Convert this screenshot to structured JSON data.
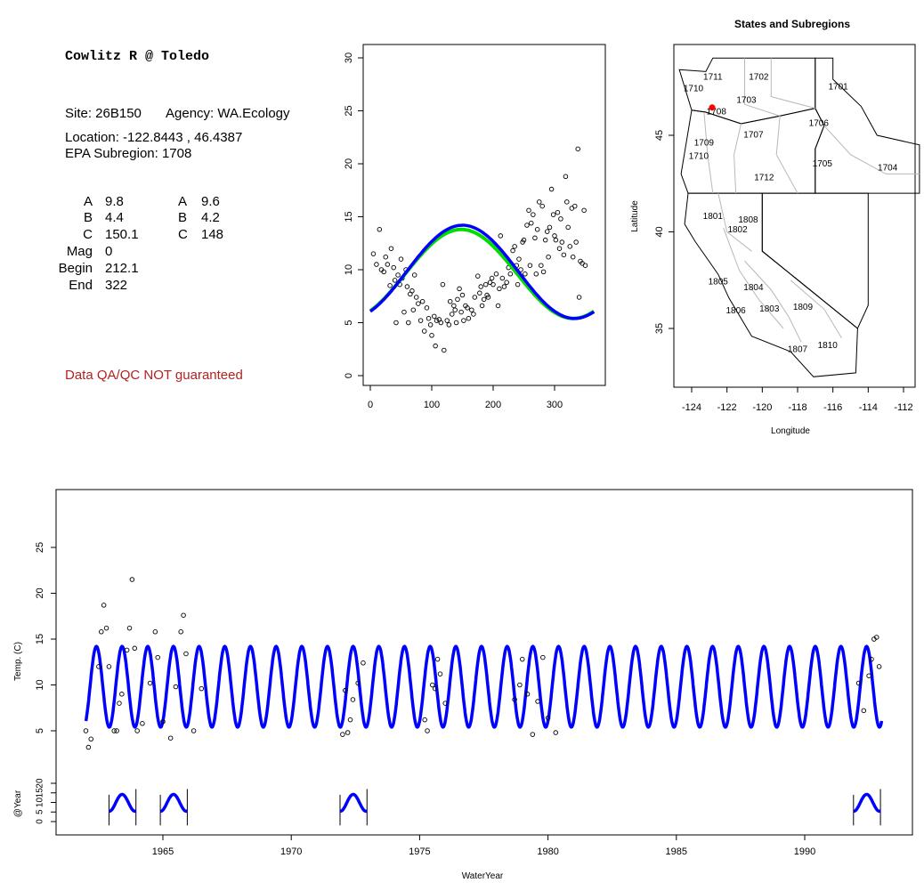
{
  "site": {
    "title": "Cowlitz R @ Toledo",
    "site_line": "Site: 26B150",
    "agency_line": "Agency: WA.Ecology",
    "location_line": "Location: -122.8443 , 46.4387",
    "subregion_line": "EPA Subregion: 1708",
    "params_left": [
      {
        "label": "A",
        "value": "9.8"
      },
      {
        "label": "B",
        "value": "4.4"
      },
      {
        "label": "C",
        "value": "150.1"
      },
      {
        "label": "Mag",
        "value": "0"
      },
      {
        "label": "Begin",
        "value": "212.1"
      },
      {
        "label": "End",
        "value": "322"
      }
    ],
    "params_right": [
      {
        "label": "A",
        "value": "9.6"
      },
      {
        "label": "B",
        "value": "4.2"
      },
      {
        "label": "C",
        "value": "148"
      }
    ],
    "qa_note": "Data QA/QC NOT guaranteed"
  },
  "chart_data": [
    {
      "type": "scatter",
      "xlim": [
        0,
        365
      ],
      "ylim": [
        0,
        30
      ],
      "x_ticks": [
        0,
        100,
        200,
        300
      ],
      "y_ticks": [
        0,
        5,
        10,
        15,
        20,
        25,
        30
      ],
      "xlabel": "",
      "ylabel": "",
      "points": [
        [
          5,
          11.5
        ],
        [
          10,
          10.5
        ],
        [
          15,
          13.8
        ],
        [
          18,
          10
        ],
        [
          22,
          9.8
        ],
        [
          25,
          11.2
        ],
        [
          28,
          10.5
        ],
        [
          32,
          8.5
        ],
        [
          34,
          12
        ],
        [
          38,
          10.2
        ],
        [
          40,
          9
        ],
        [
          42,
          5
        ],
        [
          45,
          9.5
        ],
        [
          48,
          8.6
        ],
        [
          50,
          11
        ],
        [
          52,
          9.2
        ],
        [
          55,
          6
        ],
        [
          58,
          10
        ],
        [
          60,
          8.4
        ],
        [
          62,
          5
        ],
        [
          65,
          7.7
        ],
        [
          68,
          8
        ],
        [
          70,
          6.2
        ],
        [
          72,
          9.5
        ],
        [
          75,
          7.4
        ],
        [
          78,
          6.8
        ],
        [
          82,
          5.2
        ],
        [
          85,
          7
        ],
        [
          88,
          4.2
        ],
        [
          92,
          6.4
        ],
        [
          95,
          5.4
        ],
        [
          98,
          4.8
        ],
        [
          100,
          3.8
        ],
        [
          104,
          5.6
        ],
        [
          106,
          2.8
        ],
        [
          108,
          5.2
        ],
        [
          112,
          5.3
        ],
        [
          115,
          5
        ],
        [
          118,
          8.6
        ],
        [
          120,
          2.4
        ],
        [
          125,
          5.2
        ],
        [
          128,
          4.8
        ],
        [
          130,
          7
        ],
        [
          133,
          5.8
        ],
        [
          136,
          6.6
        ],
        [
          138,
          6.2
        ],
        [
          140,
          5
        ],
        [
          142,
          7.2
        ],
        [
          145,
          8.2
        ],
        [
          148,
          6
        ],
        [
          150,
          7.6
        ],
        [
          152,
          5.2
        ],
        [
          155,
          6.6
        ],
        [
          158,
          6.4
        ],
        [
          160,
          5.4
        ],
        [
          165,
          6.2
        ],
        [
          168,
          5.8
        ],
        [
          170,
          7.4
        ],
        [
          175,
          9.4
        ],
        [
          178,
          7.8
        ],
        [
          180,
          8.4
        ],
        [
          182,
          6.6
        ],
        [
          185,
          7.2
        ],
        [
          188,
          8.6
        ],
        [
          190,
          7.6
        ],
        [
          192,
          7.4
        ],
        [
          195,
          8.8
        ],
        [
          198,
          9.2
        ],
        [
          200,
          8.6
        ],
        [
          205,
          9.6
        ],
        [
          208,
          6.6
        ],
        [
          210,
          8.2
        ],
        [
          212,
          13.2
        ],
        [
          215,
          9.2
        ],
        [
          218,
          8.4
        ],
        [
          220,
          11.2
        ],
        [
          222,
          8.8
        ],
        [
          225,
          10.2
        ],
        [
          228,
          9.6
        ],
        [
          232,
          11.8
        ],
        [
          235,
          12.2
        ],
        [
          238,
          10.4
        ],
        [
          240,
          8.6
        ],
        [
          242,
          11
        ],
        [
          245,
          10
        ],
        [
          248,
          12.6
        ],
        [
          250,
          12.8
        ],
        [
          252,
          9.6
        ],
        [
          255,
          14.2
        ],
        [
          258,
          15.6
        ],
        [
          260,
          10.4
        ],
        [
          262,
          14.4
        ],
        [
          265,
          15.2
        ],
        [
          268,
          13
        ],
        [
          270,
          9.6
        ],
        [
          272,
          13.8
        ],
        [
          275,
          16.4
        ],
        [
          278,
          10.4
        ],
        [
          280,
          16
        ],
        [
          282,
          9.8
        ],
        [
          285,
          12.8
        ],
        [
          288,
          13.6
        ],
        [
          290,
          11.2
        ],
        [
          292,
          14
        ],
        [
          295,
          17.6
        ],
        [
          298,
          15.2
        ],
        [
          300,
          13.2
        ],
        [
          302,
          12.8
        ],
        [
          305,
          15.4
        ],
        [
          308,
          12
        ],
        [
          310,
          14.8
        ],
        [
          312,
          12.6
        ],
        [
          315,
          11.4
        ],
        [
          318,
          18.8
        ],
        [
          320,
          16.4
        ],
        [
          322,
          14
        ],
        [
          325,
          12.2
        ],
        [
          328,
          15.8
        ],
        [
          330,
          11.2
        ],
        [
          333,
          16
        ],
        [
          335,
          12.6
        ],
        [
          338,
          21.4
        ],
        [
          340,
          7.4
        ],
        [
          342,
          10.8
        ],
        [
          345,
          10.6
        ],
        [
          348,
          15.6
        ],
        [
          350,
          10.4
        ]
      ],
      "fit_blue": {
        "A": 9.8,
        "B": 4.4,
        "C": 150.1,
        "color": "#0000ff"
      },
      "fit_green": {
        "A": 9.6,
        "B": 4.2,
        "C": 148,
        "color": "#00dd00"
      }
    },
    {
      "type": "map",
      "title": "States and Subregions",
      "xlabel": "Longitude",
      "ylabel": "Latitude",
      "xlim": [
        -125.2,
        -110.8
      ],
      "ylim": [
        32.2,
        49.3
      ],
      "x_ticks": [
        -124,
        -122,
        -120,
        -118,
        -116,
        -114,
        -112
      ],
      "y_ticks": [
        35,
        40,
        45
      ],
      "site_point": {
        "lon": -122.84,
        "lat": 46.44,
        "color": "#ff0000"
      },
      "region_labels": [
        {
          "label": "1702",
          "lon": -120.2,
          "lat": 48.0
        },
        {
          "label": "1711",
          "lon": -122.8,
          "lat": 48.0
        },
        {
          "label": "1701",
          "lon": -115.7,
          "lat": 47.5
        },
        {
          "label": "1710",
          "lon": -123.9,
          "lat": 47.4
        },
        {
          "label": "1703",
          "lon": -120.9,
          "lat": 46.8
        },
        {
          "label": "1708",
          "lon": -122.6,
          "lat": 46.2
        },
        {
          "label": "1706",
          "lon": -116.8,
          "lat": 45.6
        },
        {
          "label": "1707",
          "lon": -120.5,
          "lat": 45.0
        },
        {
          "label": "1709",
          "lon": -123.3,
          "lat": 44.6
        },
        {
          "label": "1710",
          "lon": -123.6,
          "lat": 43.9
        },
        {
          "label": "1705",
          "lon": -116.6,
          "lat": 43.5
        },
        {
          "label": "1704",
          "lon": -112.9,
          "lat": 43.3
        },
        {
          "label": "1712",
          "lon": -119.9,
          "lat": 42.8
        },
        {
          "label": "1801",
          "lon": -122.8,
          "lat": 40.8
        },
        {
          "label": "1808",
          "lon": -120.8,
          "lat": 40.6
        },
        {
          "label": "1802",
          "lon": -121.4,
          "lat": 40.1
        },
        {
          "label": "1805",
          "lon": -122.5,
          "lat": 37.4
        },
        {
          "label": "1804",
          "lon": -120.5,
          "lat": 37.1
        },
        {
          "label": "1806",
          "lon": -121.5,
          "lat": 35.9
        },
        {
          "label": "1803",
          "lon": -119.6,
          "lat": 36.0
        },
        {
          "label": "1809",
          "lon": -117.7,
          "lat": 36.1
        },
        {
          "label": "1810",
          "lon": -116.3,
          "lat": 34.1
        },
        {
          "label": "1807",
          "lon": -118.0,
          "lat": 33.9
        }
      ]
    },
    {
      "type": "line",
      "xlabel": "WaterYear",
      "ylabel": "Temp. (C)",
      "xlim": [
        1961.6,
        1994.2
      ],
      "ylim": [
        0,
        30
      ],
      "x_ticks": [
        1965,
        1970,
        1975,
        1980,
        1985,
        1990
      ],
      "y_ticks": [
        5,
        10,
        15,
        20,
        25
      ],
      "x_range": [
        1962,
        1993
      ],
      "model": {
        "A": 9.8,
        "B": 4.4,
        "C": 150.1,
        "color": "#0000ff"
      },
      "observations": [
        [
          1962,
          5
        ],
        [
          1962.1,
          3.2
        ],
        [
          1962.2,
          4.1
        ],
        [
          1962.5,
          12
        ],
        [
          1962.6,
          15.8
        ],
        [
          1962.7,
          18.7
        ],
        [
          1962.8,
          16.2
        ],
        [
          1962.9,
          12
        ],
        [
          1963.1,
          5
        ],
        [
          1963.2,
          5
        ],
        [
          1963.3,
          8
        ],
        [
          1963.4,
          9
        ],
        [
          1963.6,
          13.8
        ],
        [
          1963.7,
          16.2
        ],
        [
          1963.8,
          21.5
        ],
        [
          1963.9,
          14
        ],
        [
          1964,
          5
        ],
        [
          1964.2,
          5.8
        ],
        [
          1964.5,
          10.2
        ],
        [
          1964.7,
          15.8
        ],
        [
          1964.8,
          13
        ],
        [
          1965,
          6
        ],
        [
          1965.3,
          4.2
        ],
        [
          1965.5,
          9.8
        ],
        [
          1965.7,
          15.8
        ],
        [
          1965.8,
          17.6
        ],
        [
          1965.9,
          13.4
        ],
        [
          1966.2,
          5
        ],
        [
          1966.5,
          9.6
        ],
        [
          1972,
          4.6
        ],
        [
          1972.1,
          9.4
        ],
        [
          1972.2,
          4.8
        ],
        [
          1972.3,
          6.2
        ],
        [
          1972.4,
          8.4
        ],
        [
          1972.6,
          10.2
        ],
        [
          1972.8,
          12.4
        ],
        [
          1975.2,
          6.2
        ],
        [
          1975.3,
          5
        ],
        [
          1975.5,
          10
        ],
        [
          1975.6,
          9.6
        ],
        [
          1975.7,
          12.8
        ],
        [
          1975.8,
          11.2
        ],
        [
          1976,
          8
        ],
        [
          1978.7,
          8.4
        ],
        [
          1978.9,
          10
        ],
        [
          1979,
          12.8
        ],
        [
          1979.2,
          9
        ],
        [
          1979.4,
          4.6
        ],
        [
          1979.6,
          8.2
        ],
        [
          1979.8,
          13
        ],
        [
          1980,
          6.4
        ],
        [
          1980.3,
          4.8
        ],
        [
          1992.1,
          10.2
        ],
        [
          1992.3,
          7.2
        ],
        [
          1992.5,
          11
        ],
        [
          1992.6,
          12.8
        ],
        [
          1992.7,
          15
        ],
        [
          1992.8,
          15.2
        ],
        [
          1992.9,
          12
        ]
      ],
      "subplot": {
        "ylabel": "@Year",
        "y_ticks": [
          0,
          5,
          10,
          15,
          20
        ],
        "ylim": [
          -2,
          25
        ],
        "segments": [
          [
            1962.9,
            1963.95
          ],
          [
            1964.9,
            1965.95
          ],
          [
            1971.9,
            1972.95
          ],
          [
            1991.9,
            1992.95
          ]
        ]
      }
    }
  ]
}
